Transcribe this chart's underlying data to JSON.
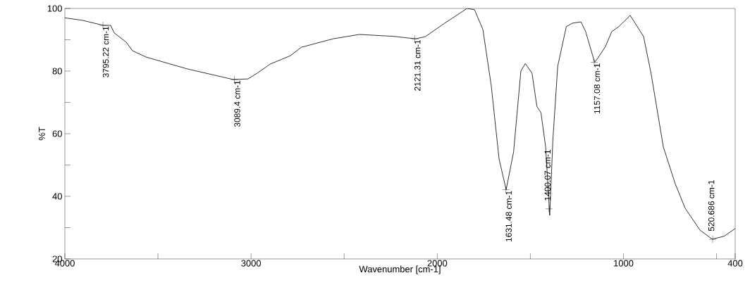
{
  "chart_data": {
    "type": "line",
    "xlabel": "Wavenumber [cm-1]",
    "ylabel": "%T",
    "xlim": [
      4000,
      400
    ],
    "ylim": [
      20,
      100
    ],
    "xticks": [
      4000,
      {
        "value": 3500,
        "label": null
      },
      3000,
      {
        "value": 2500,
        "label": null
      },
      2000,
      {
        "value": 1500,
        "label": null
      },
      1000,
      {
        "value": 500,
        "label": null
      },
      400
    ],
    "yticks": [
      20,
      {
        "value": 30,
        "label": null
      },
      40,
      {
        "value": 50,
        "label": null
      },
      60,
      {
        "value": 70,
        "label": null
      },
      80,
      {
        "value": 90,
        "label": null
      },
      100
    ],
    "series": [
      {
        "color": "#000000",
        "x": [
          4000,
          3905,
          3794,
          3754,
          3735,
          3670,
          3637,
          3565,
          3343,
          3095,
          3016,
          2965,
          2898,
          2789,
          2730,
          2560,
          2418,
          2300,
          2236,
          2116,
          2064,
          1960,
          1840,
          1800,
          1755,
          1710,
          1668,
          1630,
          1590,
          1551,
          1527,
          1491,
          1465,
          1443,
          1418,
          1396,
          1379,
          1353,
          1307,
          1274,
          1228,
          1203,
          1155,
          1136,
          1097,
          1063,
          1025,
          964,
          892,
          852,
          786,
          722,
          669,
          589,
          523,
          458,
          400
        ],
        "values": [
          97,
          96.2,
          94.6,
          94.6,
          92.2,
          89.2,
          86.5,
          84.5,
          80.7,
          77.3,
          77.5,
          79.4,
          82.2,
          84.9,
          87.6,
          90.3,
          91.7,
          91.3,
          91.1,
          90.3,
          91.0,
          95.3,
          100,
          99.6,
          93.3,
          75.3,
          51.9,
          42.1,
          54.2,
          80.0,
          82.4,
          79.3,
          68.7,
          66.7,
          55.8,
          33.9,
          58.2,
          81.6,
          94.2,
          95.3,
          95.7,
          92.6,
          82.8,
          84.3,
          87.8,
          92.6,
          94.2,
          97.8,
          91.0,
          79.3,
          55.8,
          44.0,
          36.2,
          29.2,
          26.3,
          27.3,
          29.7
        ]
      }
    ],
    "annotations": [
      {
        "text": "3795.22 cm-1",
        "x": 3795.22,
        "y": 94.6
      },
      {
        "text": "3089.4 cm-1",
        "x": 3089.4,
        "y": 77.3
      },
      {
        "text": "2121.31 cm-1",
        "x": 2121.31,
        "y": 90.3
      },
      {
        "text": "1631.48 cm-1",
        "x": 1631.48,
        "y": 42.1
      },
      {
        "text": "1400.07 cm-1",
        "x": 1400.07,
        "y": 36
      },
      {
        "text": "1157.08 cm-1",
        "x": 1157.08,
        "y": 82.8
      },
      {
        "text": "520.686 cm-1",
        "x": 520.686,
        "y": 26.3
      }
    ]
  }
}
